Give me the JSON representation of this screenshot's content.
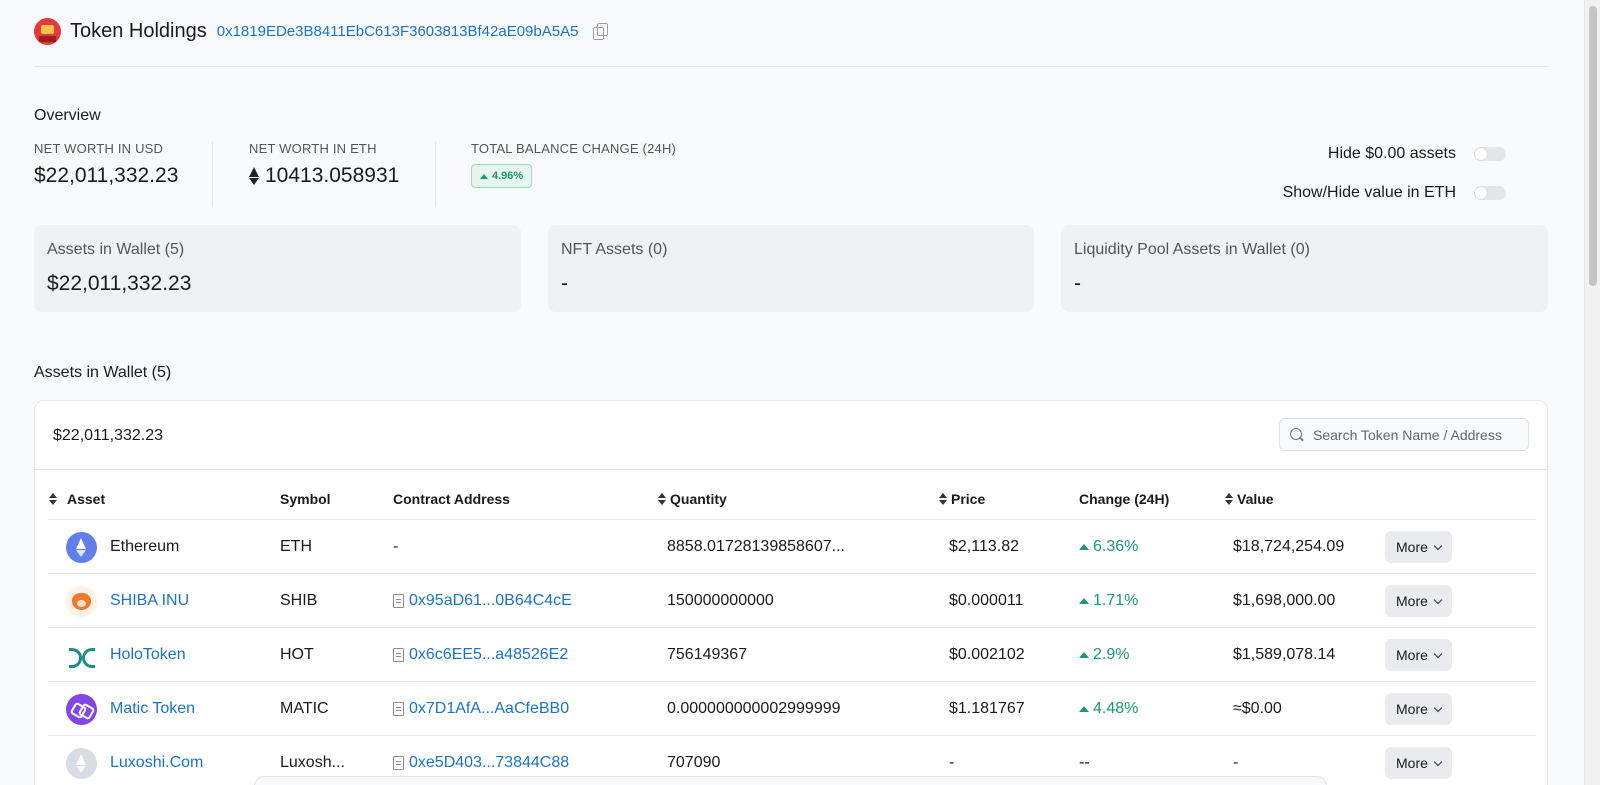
{
  "header": {
    "title": "Token Holdings",
    "address": "0x1819EDe3B8411EbC613F3603813Bf42aE09bA5A5"
  },
  "overview": {
    "label": "Overview",
    "net_worth_usd_label": "NET WORTH IN USD",
    "net_worth_usd": "$22,011,332.23",
    "net_worth_eth_label": "NET WORTH IN ETH",
    "net_worth_eth": "10413.058931",
    "balance_change_label": "TOTAL BALANCE CHANGE (24H)",
    "balance_change": "4.96%",
    "hide_zero_label": "Hide $0.00 assets",
    "show_eth_label": "Show/Hide value in ETH"
  },
  "cards": [
    {
      "title": "Assets in Wallet (5)",
      "value": "$22,011,332.23"
    },
    {
      "title": "NFT Assets (0)",
      "value": "-"
    },
    {
      "title": "Liquidity Pool Assets in Wallet (0)",
      "value": "-"
    }
  ],
  "assets": {
    "section_title": "Assets in Wallet (5)",
    "total": "$22,011,332.23",
    "search_placeholder": "Search Token Name / Address",
    "columns": {
      "asset": "Asset",
      "symbol": "Symbol",
      "contract": "Contract Address",
      "quantity": "Quantity",
      "price": "Price",
      "change": "Change (24H)",
      "value": "Value"
    },
    "more_label": "More",
    "rows": [
      {
        "name": "Ethereum",
        "symbol": "ETH",
        "contract": "-",
        "quantity": "8858.01728139858607...",
        "price": "$2,113.82",
        "change": "6.36%",
        "value": "$18,724,254.09",
        "icon": "ethereum-icon"
      },
      {
        "name": "SHIBA INU",
        "symbol": "SHIB",
        "contract": "0x95aD61...0B64C4cE",
        "quantity": "150000000000",
        "price": "$0.000011",
        "change": "1.71%",
        "value": "$1,698,000.00",
        "icon": "shiba-inu-icon"
      },
      {
        "name": "HoloToken",
        "symbol": "HOT",
        "contract": "0x6c6EE5...a48526E2",
        "quantity": "756149367",
        "price": "$0.002102",
        "change": "2.9%",
        "value": "$1,589,078.14",
        "icon": "holo-icon"
      },
      {
        "name": "Matic Token",
        "symbol": "MATIC",
        "contract": "0x7D1AfA...AaCfeBB0",
        "quantity": "0.000000000002999999",
        "price": "$1.181767",
        "change": "4.48%",
        "value": "≈$0.00",
        "icon": "matic-icon"
      },
      {
        "name": "Luxoshi.Com",
        "symbol": "Luxosh...",
        "contract": "0xe5D403...73844C88",
        "quantity": "707090",
        "price": "-",
        "change": "--",
        "value": "-",
        "icon": "luxoshi-icon"
      }
    ]
  }
}
